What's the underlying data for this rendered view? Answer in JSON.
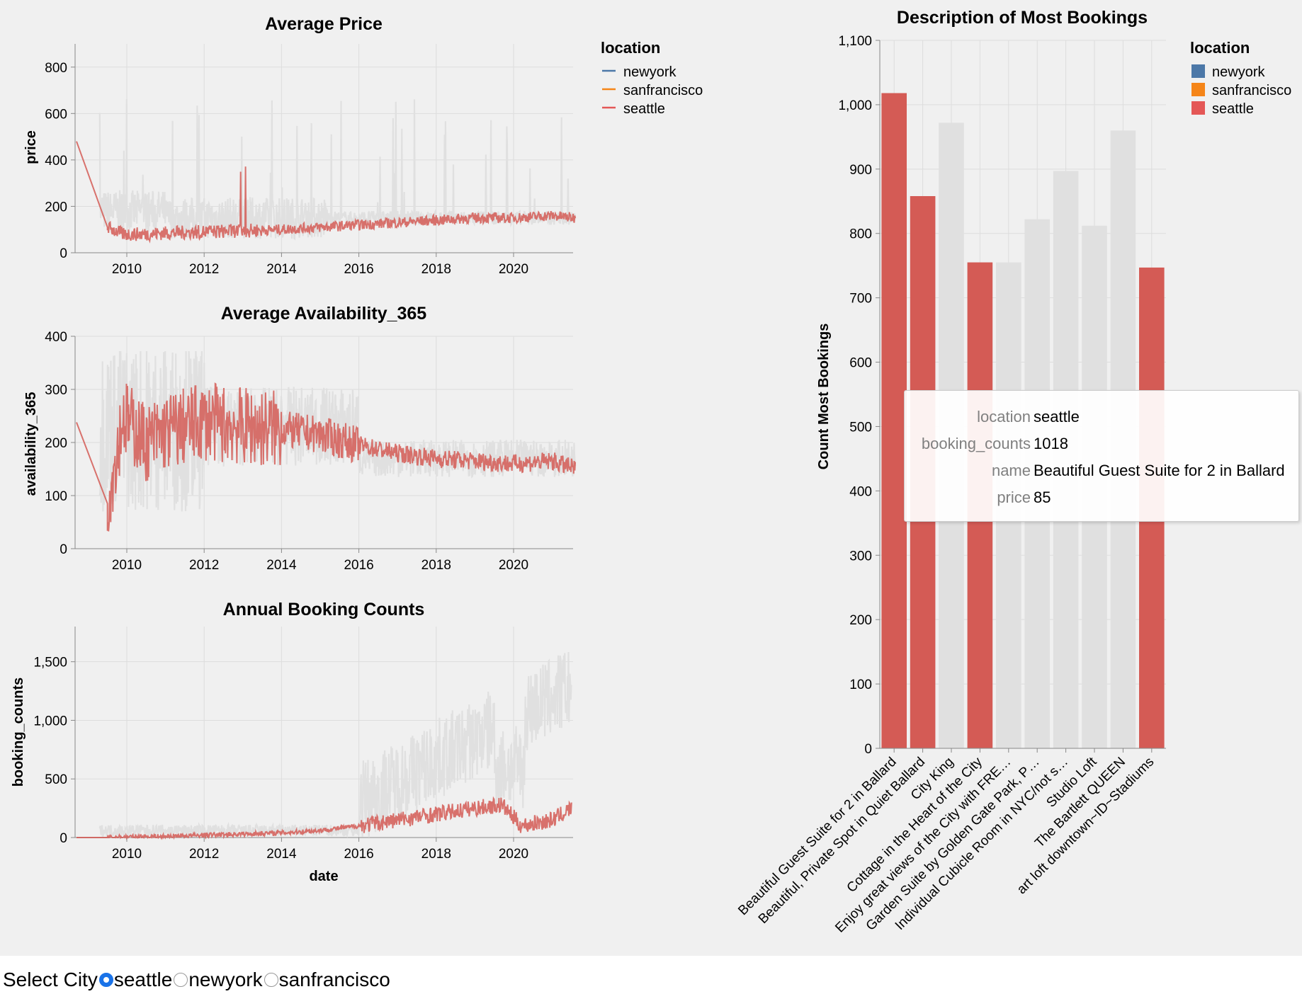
{
  "colors": {
    "newyork": "#4c78a8",
    "sanfrancisco": "#f58518",
    "seattle": "#e45756",
    "highlight": "#d45b55",
    "dim": "#e0e0e0",
    "grid": "#dddddd",
    "panel": "#f0f0f0"
  },
  "legend": {
    "title": "location",
    "items": [
      "newyork",
      "sanfrancisco",
      "seattle"
    ]
  },
  "tooltip": {
    "rows": [
      {
        "key": "location",
        "value": "seattle"
      },
      {
        "key": "booking_counts",
        "value": "1018"
      },
      {
        "key": "name",
        "value": "Beautiful Guest Suite for 2 in Ballard"
      },
      {
        "key": "price",
        "value": "85"
      }
    ]
  },
  "selector": {
    "label": "Select City",
    "options": [
      "seattle",
      "newyork",
      "sanfrancisco"
    ],
    "selected": "seattle"
  },
  "chart_data": [
    {
      "type": "line",
      "title": "Average Price",
      "xlabel": "",
      "ylabel": "price",
      "xlim": [
        2008.7,
        2021.6
      ],
      "ylim": [
        0,
        900
      ],
      "xticks": [
        "2010",
        "2012",
        "2014",
        "2016",
        "2018",
        "2020"
      ],
      "yticks": [
        "0",
        "200",
        "400",
        "600",
        "800"
      ],
      "grid": true,
      "legend": "right",
      "series": [
        {
          "name": "seattle",
          "x": [
            2008.7,
            2009.5,
            2009.9,
            2010.5,
            2011.0,
            2012.0,
            2013.0,
            2014.0,
            2015.0,
            2016.0,
            2017.0,
            2018.0,
            2019.0,
            2020.0,
            2021.0,
            2021.6
          ],
          "y": [
            480,
            110,
            80,
            80,
            85,
            90,
            95,
            100,
            110,
            120,
            130,
            140,
            150,
            150,
            160,
            150
          ]
        }
      ]
    },
    {
      "type": "line",
      "title": "Average Availability_365",
      "xlabel": "",
      "ylabel": "availability_365",
      "xlim": [
        2008.7,
        2021.6
      ],
      "ylim": [
        0,
        400
      ],
      "xticks": [
        "2010",
        "2012",
        "2014",
        "2016",
        "2018",
        "2020"
      ],
      "yticks": [
        "0",
        "100",
        "200",
        "300",
        "400"
      ],
      "grid": true,
      "series": [
        {
          "name": "seattle",
          "x": [
            2008.7,
            2009.5,
            2009.9,
            2010.5,
            2011.0,
            2012.0,
            2013.0,
            2014.0,
            2015.0,
            2016.0,
            2017.0,
            2018.0,
            2019.0,
            2020.0,
            2021.0,
            2021.6
          ],
          "y": [
            238,
            85,
            250,
            200,
            220,
            240,
            230,
            225,
            215,
            195,
            180,
            170,
            165,
            160,
            165,
            150
          ]
        }
      ]
    },
    {
      "type": "line",
      "title": "Annual Booking Counts",
      "xlabel": "date",
      "ylabel": "booking_counts",
      "xlim": [
        2008.7,
        2021.6
      ],
      "ylim": [
        0,
        1800
      ],
      "xticks": [
        "2010",
        "2012",
        "2014",
        "2016",
        "2018",
        "2020"
      ],
      "yticks": [
        "0",
        "500",
        "1,000",
        "1,500"
      ],
      "grid": true,
      "series": [
        {
          "name": "seattle",
          "x": [
            2008.7,
            2009.5,
            2010.0,
            2011.0,
            2012.0,
            2013.0,
            2014.0,
            2015.0,
            2016.0,
            2017.0,
            2018.0,
            2019.0,
            2019.7,
            2020.2,
            2021.0,
            2021.5
          ],
          "y": [
            0,
            0,
            5,
            10,
            20,
            30,
            40,
            60,
            100,
            150,
            200,
            250,
            280,
            100,
            150,
            250
          ]
        }
      ]
    },
    {
      "type": "bar",
      "title": "Description of Most Bookings",
      "xlabel": "",
      "ylabel": "Count Most Bookings",
      "ylim": [
        0,
        1100
      ],
      "yticks": [
        "0",
        "100",
        "200",
        "300",
        "400",
        "500",
        "600",
        "700",
        "800",
        "900",
        "1,000",
        "1,100"
      ],
      "grid": true,
      "legend": "top-right",
      "categories": [
        "Beautiful Guest Suite for 2 in Ballard",
        "Beautiful, Private Spot in Quiet Ballard",
        "City King",
        "Cottage in the Heart of the City",
        "Enjoy great views of the City with FRE…",
        "Garden Suite by Golden Gate Park, P…",
        "Individual Cubicle Room in NYC/not s…",
        "Studio Loft",
        "The Bartlett QUEEN",
        "art loft downtown~ID~Stadiums"
      ],
      "values": [
        1018,
        858,
        972,
        755,
        755,
        822,
        897,
        812,
        960,
        747
      ],
      "locations": [
        "seattle",
        "seattle",
        "other",
        "seattle",
        "other",
        "other",
        "other",
        "other",
        "other",
        "seattle"
      ]
    }
  ]
}
